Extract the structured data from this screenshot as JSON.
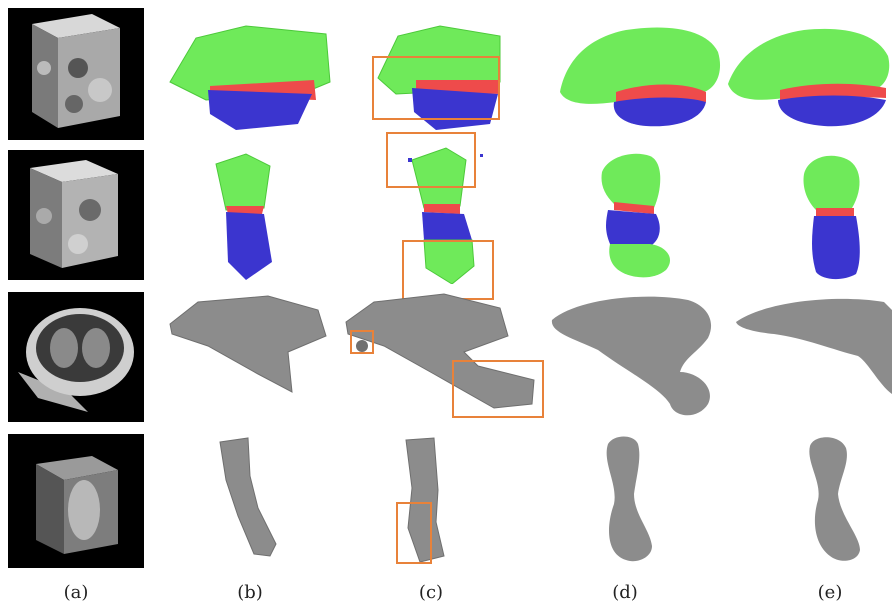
{
  "figure": {
    "columns": [
      {
        "id": "a",
        "label": "(a)"
      },
      {
        "id": "b",
        "label": "(b)"
      },
      {
        "id": "c",
        "label": "(c)"
      },
      {
        "id": "d",
        "label": "(d)"
      },
      {
        "id": "e",
        "label": "(e)"
      }
    ],
    "rows": [
      {
        "id": "row-1",
        "input": "em-volume-cube",
        "render": "green-red-blue-neuron-segmentation"
      },
      {
        "id": "row-2",
        "input": "em-volume-cube",
        "render": "green-red-blue-segment"
      },
      {
        "id": "row-3",
        "input": "ct-chest-volume",
        "render": "gray-liver-mesh"
      },
      {
        "id": "row-4",
        "input": "mri-volume",
        "render": "gray-bone-mesh"
      }
    ],
    "colors": {
      "green": "#6fea5a",
      "red": "#ee4b4b",
      "blue": "#3b35cf",
      "gray": "#8c8c8c",
      "highlight": "#e8823a",
      "thumb_bg": "#000000"
    }
  }
}
